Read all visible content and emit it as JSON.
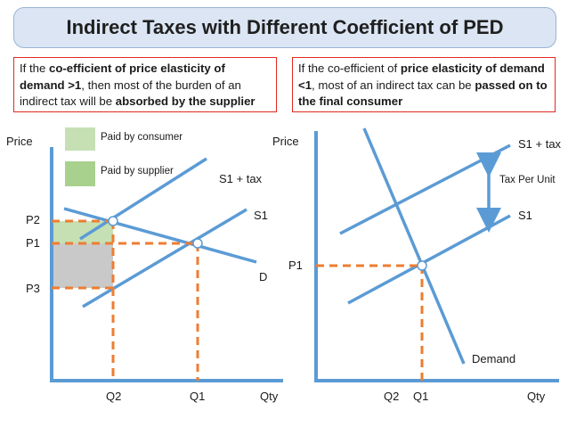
{
  "title": "Indirect Taxes with Different Coefficient of PED",
  "left_note": {
    "t1": "If the ",
    "b1": "co-efficient of price elasticity of demand >1",
    "t2": ", then most of the burden of an indirect tax will be ",
    "b2": "absorbed by the supplier"
  },
  "right_note": {
    "t1": "If the co-efficient of ",
    "b1": "price elasticity of demand <1",
    "t2": ", most of an indirect tax can be ",
    "b2": "passed on to the final consumer"
  },
  "left_chart": {
    "ylabel": "Price",
    "xlabel": "Qty",
    "legend_consumer": "Paid by consumer",
    "legend_supplier": "Paid by supplier",
    "curve_s1_tax": "S1 + tax",
    "curve_s1": "S1",
    "curve_d": "D",
    "p2": "P2",
    "p1": "P1",
    "p3": "P3",
    "q2": "Q2",
    "q1": "Q1"
  },
  "right_chart": {
    "ylabel": "Price",
    "xlabel": "Qty",
    "curve_s1_tax": "S1 + tax",
    "curve_s1": "S1",
    "tax_per_unit": "Tax Per Unit",
    "curve_demand": "Demand",
    "p1": "P1",
    "q2": "Q2",
    "q1": "Q1"
  },
  "colors": {
    "curve": "#5b9bd5",
    "dashed": "#ed7d31",
    "consumer_area": "#c6e0b4",
    "supplier_area": "#c9c9c9",
    "note_border": "#e02b20"
  }
}
